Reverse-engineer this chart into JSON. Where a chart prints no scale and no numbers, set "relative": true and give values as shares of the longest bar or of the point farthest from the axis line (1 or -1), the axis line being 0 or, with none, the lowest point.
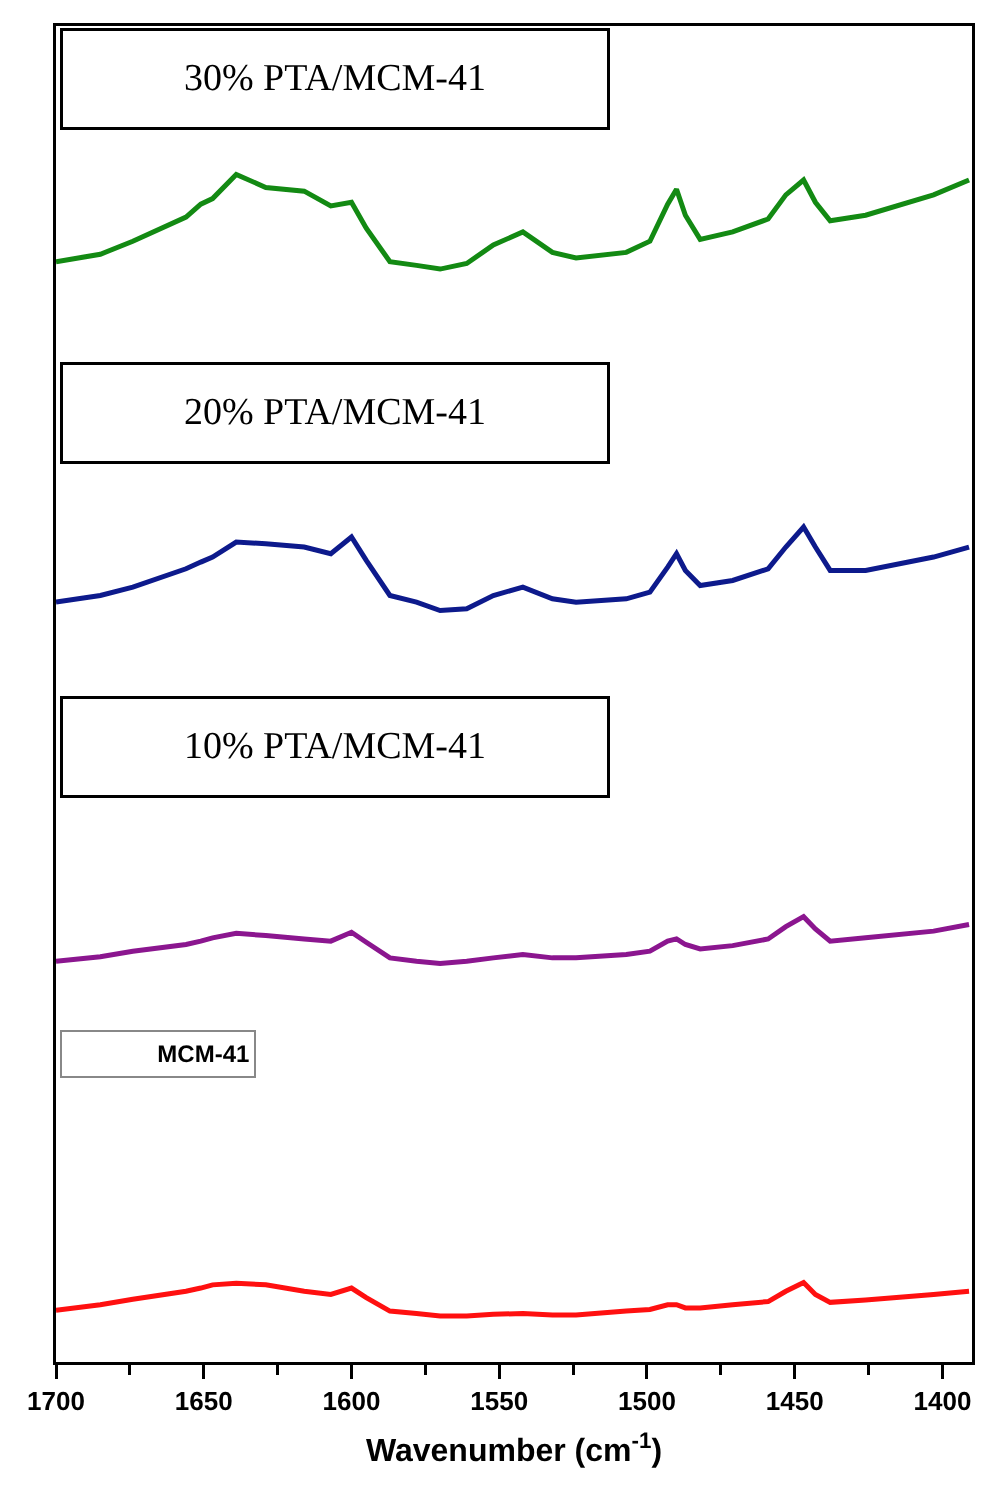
{
  "chart_data": [
    {
      "type": "line",
      "title": "30% PTA/MCM-41",
      "relative": true,
      "xlim": [
        1700,
        1390
      ],
      "grid": false,
      "x": [
        1700,
        1685,
        1674,
        1656,
        1651,
        1647,
        1639,
        1629,
        1616,
        1607,
        1600,
        1595,
        1587,
        1578,
        1570,
        1561,
        1552,
        1542,
        1532,
        1524,
        1507,
        1499,
        1493,
        1490,
        1487,
        1482,
        1471,
        1459,
        1453,
        1447,
        1443,
        1438,
        1426,
        1403,
        1391
      ],
      "series": [
        {
          "color": "#138a13",
          "values": [
            0.53,
            0.57,
            0.64,
            0.77,
            0.84,
            0.87,
            1,
            0.93,
            0.91,
            0.83,
            0.85,
            0.71,
            0.53,
            0.51,
            0.49,
            0.52,
            0.62,
            0.69,
            0.58,
            0.55,
            0.58,
            0.64,
            0.84,
            0.92,
            0.78,
            0.65,
            0.69,
            0.76,
            0.89,
            0.97,
            0.85,
            0.75,
            0.78,
            0.89,
            0.97
          ]
        }
      ]
    },
    {
      "type": "line",
      "title": "20% PTA/MCM-41",
      "relative": true,
      "xlim": [
        1700,
        1390
      ],
      "grid": false,
      "x": [
        1700,
        1685,
        1674,
        1656,
        1651,
        1647,
        1639,
        1629,
        1616,
        1607,
        1600,
        1595,
        1587,
        1578,
        1570,
        1561,
        1552,
        1542,
        1532,
        1524,
        1507,
        1499,
        1493,
        1490,
        1487,
        1482,
        1471,
        1459,
        1453,
        1447,
        1443,
        1438,
        1426,
        1403,
        1391
      ],
      "series": [
        {
          "color": "#0d1a8c",
          "values": [
            0.55,
            0.59,
            0.64,
            0.75,
            0.79,
            0.82,
            0.91,
            0.9,
            0.88,
            0.84,
            0.94,
            0.8,
            0.59,
            0.55,
            0.5,
            0.51,
            0.59,
            0.64,
            0.57,
            0.55,
            0.57,
            0.61,
            0.76,
            0.84,
            0.74,
            0.65,
            0.68,
            0.75,
            0.88,
            1,
            0.88,
            0.74,
            0.74,
            0.82,
            0.88
          ]
        }
      ]
    },
    {
      "type": "line",
      "title": "10% PTA/MCM-41",
      "relative": true,
      "xlim": [
        1700,
        1390
      ],
      "grid": false,
      "x": [
        1700,
        1685,
        1674,
        1656,
        1651,
        1647,
        1639,
        1629,
        1616,
        1607,
        1600,
        1595,
        1587,
        1578,
        1570,
        1561,
        1552,
        1542,
        1532,
        1524,
        1507,
        1499,
        1493,
        1490,
        1487,
        1482,
        1471,
        1459,
        1453,
        1447,
        1443,
        1438,
        1426,
        1403,
        1391
      ],
      "series": [
        {
          "color": "#8b168f",
          "values": [
            0.6,
            0.64,
            0.69,
            0.75,
            0.78,
            0.81,
            0.85,
            0.83,
            0.8,
            0.78,
            0.86,
            0.77,
            0.63,
            0.6,
            0.58,
            0.6,
            0.63,
            0.66,
            0.63,
            0.63,
            0.66,
            0.69,
            0.78,
            0.8,
            0.75,
            0.71,
            0.74,
            0.8,
            0.91,
            1,
            0.89,
            0.78,
            0.81,
            0.87,
            0.93
          ]
        }
      ]
    },
    {
      "type": "line",
      "title": "MCM-41",
      "relative": true,
      "xlabel": "Wavenumber (cm$^{-1}$)",
      "xlim": [
        1700,
        1390
      ],
      "grid": false,
      "xticks": [
        1700,
        {
          "value": 1675,
          "label": null
        },
        1650,
        {
          "value": 1625,
          "label": null
        },
        1600,
        {
          "value": 1575,
          "label": null
        },
        1550,
        {
          "value": 1525,
          "label": null
        },
        1500,
        {
          "value": 1475,
          "label": null
        },
        1450,
        {
          "value": 1425,
          "label": null
        },
        1400
      ],
      "x": [
        1700,
        1685,
        1674,
        1656,
        1651,
        1647,
        1639,
        1629,
        1616,
        1607,
        1600,
        1595,
        1587,
        1578,
        1570,
        1561,
        1552,
        1542,
        1532,
        1524,
        1507,
        1499,
        1493,
        1490,
        1487,
        1482,
        1471,
        1459,
        1453,
        1447,
        1443,
        1438,
        1426,
        1403,
        1391
      ],
      "series": [
        {
          "color": "#ff1010",
          "values": [
            0.65,
            0.72,
            0.79,
            0.89,
            0.93,
            0.97,
            0.99,
            0.97,
            0.89,
            0.85,
            0.93,
            0.81,
            0.64,
            0.61,
            0.58,
            0.58,
            0.6,
            0.61,
            0.59,
            0.59,
            0.64,
            0.66,
            0.72,
            0.72,
            0.68,
            0.68,
            0.72,
            0.76,
            0.89,
            1,
            0.85,
            0.75,
            0.78,
            0.85,
            0.89
          ]
        }
      ]
    }
  ]
}
